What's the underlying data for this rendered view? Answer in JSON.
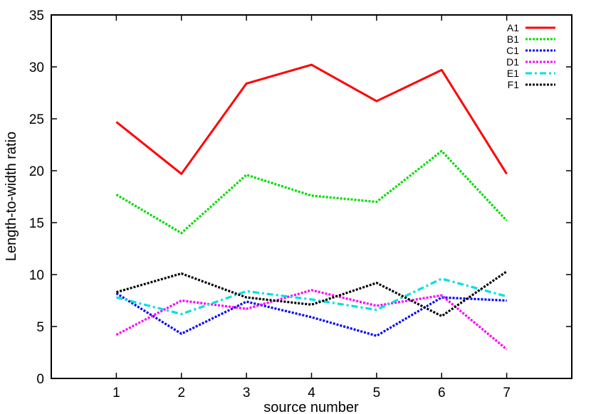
{
  "chart_data": {
    "type": "line",
    "title": "",
    "xlabel": "source number",
    "ylabel": "Length-to-width ratio",
    "x": [
      1,
      2,
      3,
      4,
      5,
      6,
      7
    ],
    "xlim": [
      0,
      8
    ],
    "ylim": [
      0,
      35
    ],
    "xticks": [
      "1",
      "2",
      "3",
      "4",
      "5",
      "6",
      "7"
    ],
    "yticks": [
      "0",
      "5",
      "10",
      "15",
      "20",
      "25",
      "30",
      "35"
    ],
    "grid": false,
    "legend_position": "top-right",
    "series": [
      {
        "name": "A1",
        "color": "#ff0000",
        "dash": "solid",
        "values": [
          24.7,
          19.7,
          28.4,
          30.2,
          26.7,
          29.7,
          19.7
        ]
      },
      {
        "name": "B1",
        "color": "#00dd00",
        "dash": "dotted",
        "values": [
          17.7,
          14.0,
          19.6,
          17.6,
          17.0,
          21.9,
          15.2
        ]
      },
      {
        "name": "C1",
        "color": "#0000ff",
        "dash": "dotted",
        "values": [
          8.2,
          4.3,
          7.4,
          5.9,
          4.1,
          7.8,
          7.5
        ]
      },
      {
        "name": "D1",
        "color": "#ff00ff",
        "dash": "dotted",
        "values": [
          4.2,
          7.5,
          6.7,
          8.5,
          7.0,
          8.0,
          2.8
        ]
      },
      {
        "name": "E1",
        "color": "#00e0e0",
        "dash": "dashdot",
        "values": [
          7.8,
          6.2,
          8.4,
          7.6,
          6.6,
          9.6,
          7.9
        ]
      },
      {
        "name": "F1",
        "color": "#000000",
        "dash": "dotted",
        "values": [
          8.3,
          10.1,
          7.8,
          7.1,
          9.2,
          6.0,
          10.3
        ]
      }
    ]
  }
}
